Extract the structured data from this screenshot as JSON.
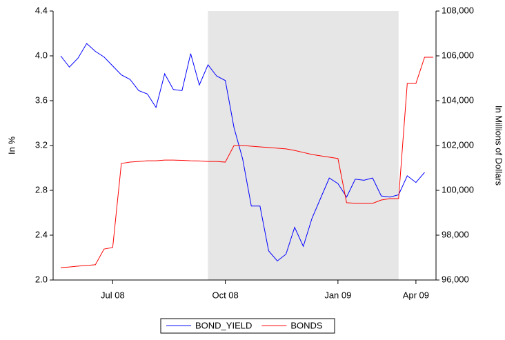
{
  "chart_data": {
    "type": "line",
    "y_label": "In %",
    "y2_label": "In Millions of Dollars",
    "categories": [
      null,
      null,
      null,
      null,
      null,
      null,
      "Jul 08",
      null,
      null,
      null,
      null,
      null,
      null,
      null,
      null,
      null,
      null,
      null,
      null,
      "Oct 08",
      null,
      null,
      null,
      null,
      null,
      null,
      null,
      null,
      null,
      null,
      null,
      null,
      "Jan 09",
      null,
      null,
      null,
      null,
      null,
      null,
      null,
      null,
      "Apr 09",
      null,
      null
    ],
    "shade_categories": [
      17,
      39
    ],
    "shade_color": "#e6e6e6",
    "ylim": [
      2.0,
      4.4
    ],
    "yticks": [
      {
        "value": 2.0,
        "label": "2.0"
      },
      {
        "value": 2.4,
        "label": "2.4"
      },
      {
        "value": 2.8,
        "label": "2.8"
      },
      {
        "value": 3.2,
        "label": "3.2"
      },
      {
        "value": 3.6,
        "label": "3.6"
      },
      {
        "value": 4.0,
        "label": "4.0"
      },
      {
        "value": 4.4,
        "label": "4.4"
      }
    ],
    "y2lim": [
      96000,
      108000
    ],
    "y2ticks": [
      {
        "value": 96000,
        "label": "96,000"
      },
      {
        "value": 98000,
        "label": "98,000"
      },
      {
        "value": 100000,
        "label": "100,000"
      },
      {
        "value": 102000,
        "label": "102,000"
      },
      {
        "value": 104000,
        "label": "104,000"
      },
      {
        "value": 106000,
        "label": "106,000"
      },
      {
        "value": 108000,
        "label": "108,000"
      }
    ],
    "series": [
      {
        "name": "BOND_YIELD",
        "color": "#0000ff",
        "axis": "y",
        "values": [
          4.0,
          3.9,
          3.98,
          4.11,
          4.04,
          3.99,
          3.91,
          3.83,
          3.79,
          3.69,
          3.66,
          3.54,
          3.84,
          3.7,
          3.69,
          4.02,
          3.74,
          3.92,
          3.82,
          3.78,
          3.36,
          3.08,
          2.66,
          2.66,
          2.26,
          2.17,
          2.23,
          2.47,
          2.3,
          2.55,
          2.73,
          2.91,
          2.86,
          2.74,
          2.9,
          2.89,
          2.91,
          2.75,
          2.74,
          2.76,
          2.93,
          2.87,
          2.96,
          null
        ]
      },
      {
        "name": "BONDS",
        "color": "#ff0000",
        "axis": "y2",
        "values": [
          96550,
          96580,
          96620,
          96650,
          96680,
          97380,
          97450,
          101200,
          101260,
          101290,
          101320,
          101320,
          101350,
          101350,
          101340,
          101320,
          101310,
          101290,
          101290,
          101260,
          102000,
          102000,
          101970,
          101940,
          101910,
          101880,
          101850,
          101780,
          101690,
          101600,
          101540,
          101480,
          101420,
          99450,
          99420,
          99420,
          99420,
          99570,
          99630,
          99630,
          104770,
          104770,
          105940,
          105940
        ]
      }
    ],
    "legend": "bottom"
  }
}
